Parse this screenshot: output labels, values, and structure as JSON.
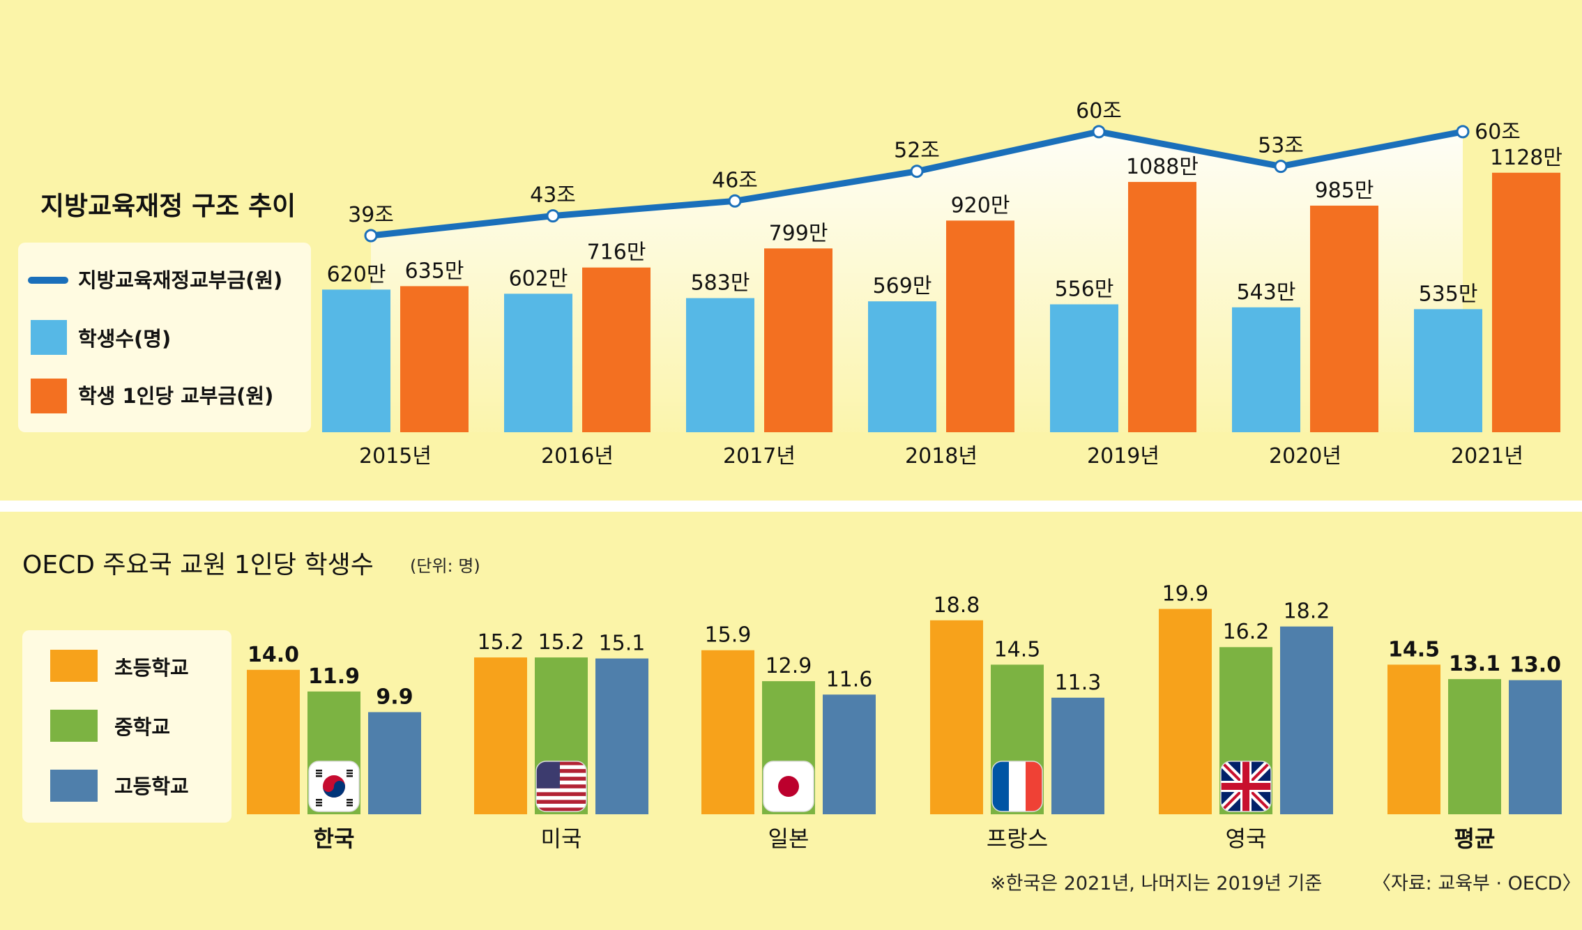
{
  "chart_data": [
    {
      "type": "bar",
      "title": "지방교육재정 구조 추이",
      "categories": [
        "2015년",
        "2016년",
        "2017년",
        "2018년",
        "2019년",
        "2020년",
        "2021년"
      ],
      "line_series": {
        "name": "지방교육재정교부금(원)",
        "values": [
          39,
          43,
          46,
          52,
          60,
          53,
          60
        ],
        "labels": [
          "39조",
          "43조",
          "46조",
          "52조",
          "60조",
          "53조",
          "60조"
        ],
        "color": "#1a6fba"
      },
      "series": [
        {
          "name": "학생수(명)",
          "values": [
            620,
            602,
            583,
            569,
            556,
            543,
            535
          ],
          "labels": [
            "620만",
            "602만",
            "583만",
            "569만",
            "556만",
            "543만",
            "535만"
          ],
          "color": "#56b8e6"
        },
        {
          "name": "학생 1인당 교부금(원)",
          "values": [
            635,
            716,
            799,
            920,
            1088,
            985,
            1128
          ],
          "labels": [
            "635만",
            "716만",
            "799만",
            "920만",
            "1088만",
            "985만",
            "1128만"
          ],
          "color": "#f37021"
        }
      ],
      "legend": [
        "지방교육재정교부금(원)",
        "학생수(명)",
        "학생 1인당 교부금(원)"
      ]
    },
    {
      "type": "bar",
      "title": "OECD 주요국 교원 1인당 학생수",
      "unit": "(단위: 명)",
      "categories": [
        "한국",
        "미국",
        "일본",
        "프랑스",
        "영국",
        "평균"
      ],
      "bold_categories": [
        "한국",
        "평균"
      ],
      "flags": [
        "korea-flag-icon",
        "usa-flag-icon",
        "japan-flag-icon",
        "france-flag-icon",
        "uk-flag-icon",
        ""
      ],
      "series": [
        {
          "name": "초등학교",
          "values": [
            14.0,
            15.2,
            15.9,
            18.8,
            19.9,
            14.5
          ],
          "color": "#f7a21b"
        },
        {
          "name": "중학교",
          "values": [
            11.9,
            15.2,
            12.9,
            14.5,
            16.2,
            13.1
          ],
          "color": "#7cb342"
        },
        {
          "name": "고등학교",
          "values": [
            9.9,
            15.1,
            11.6,
            11.3,
            18.2,
            13.0
          ],
          "color": "#4f7fab"
        }
      ],
      "footnote": "※한국은 2021년, 나머지는 2019년 기준",
      "source": "〈자료: 교육부 · OECD〉"
    }
  ]
}
